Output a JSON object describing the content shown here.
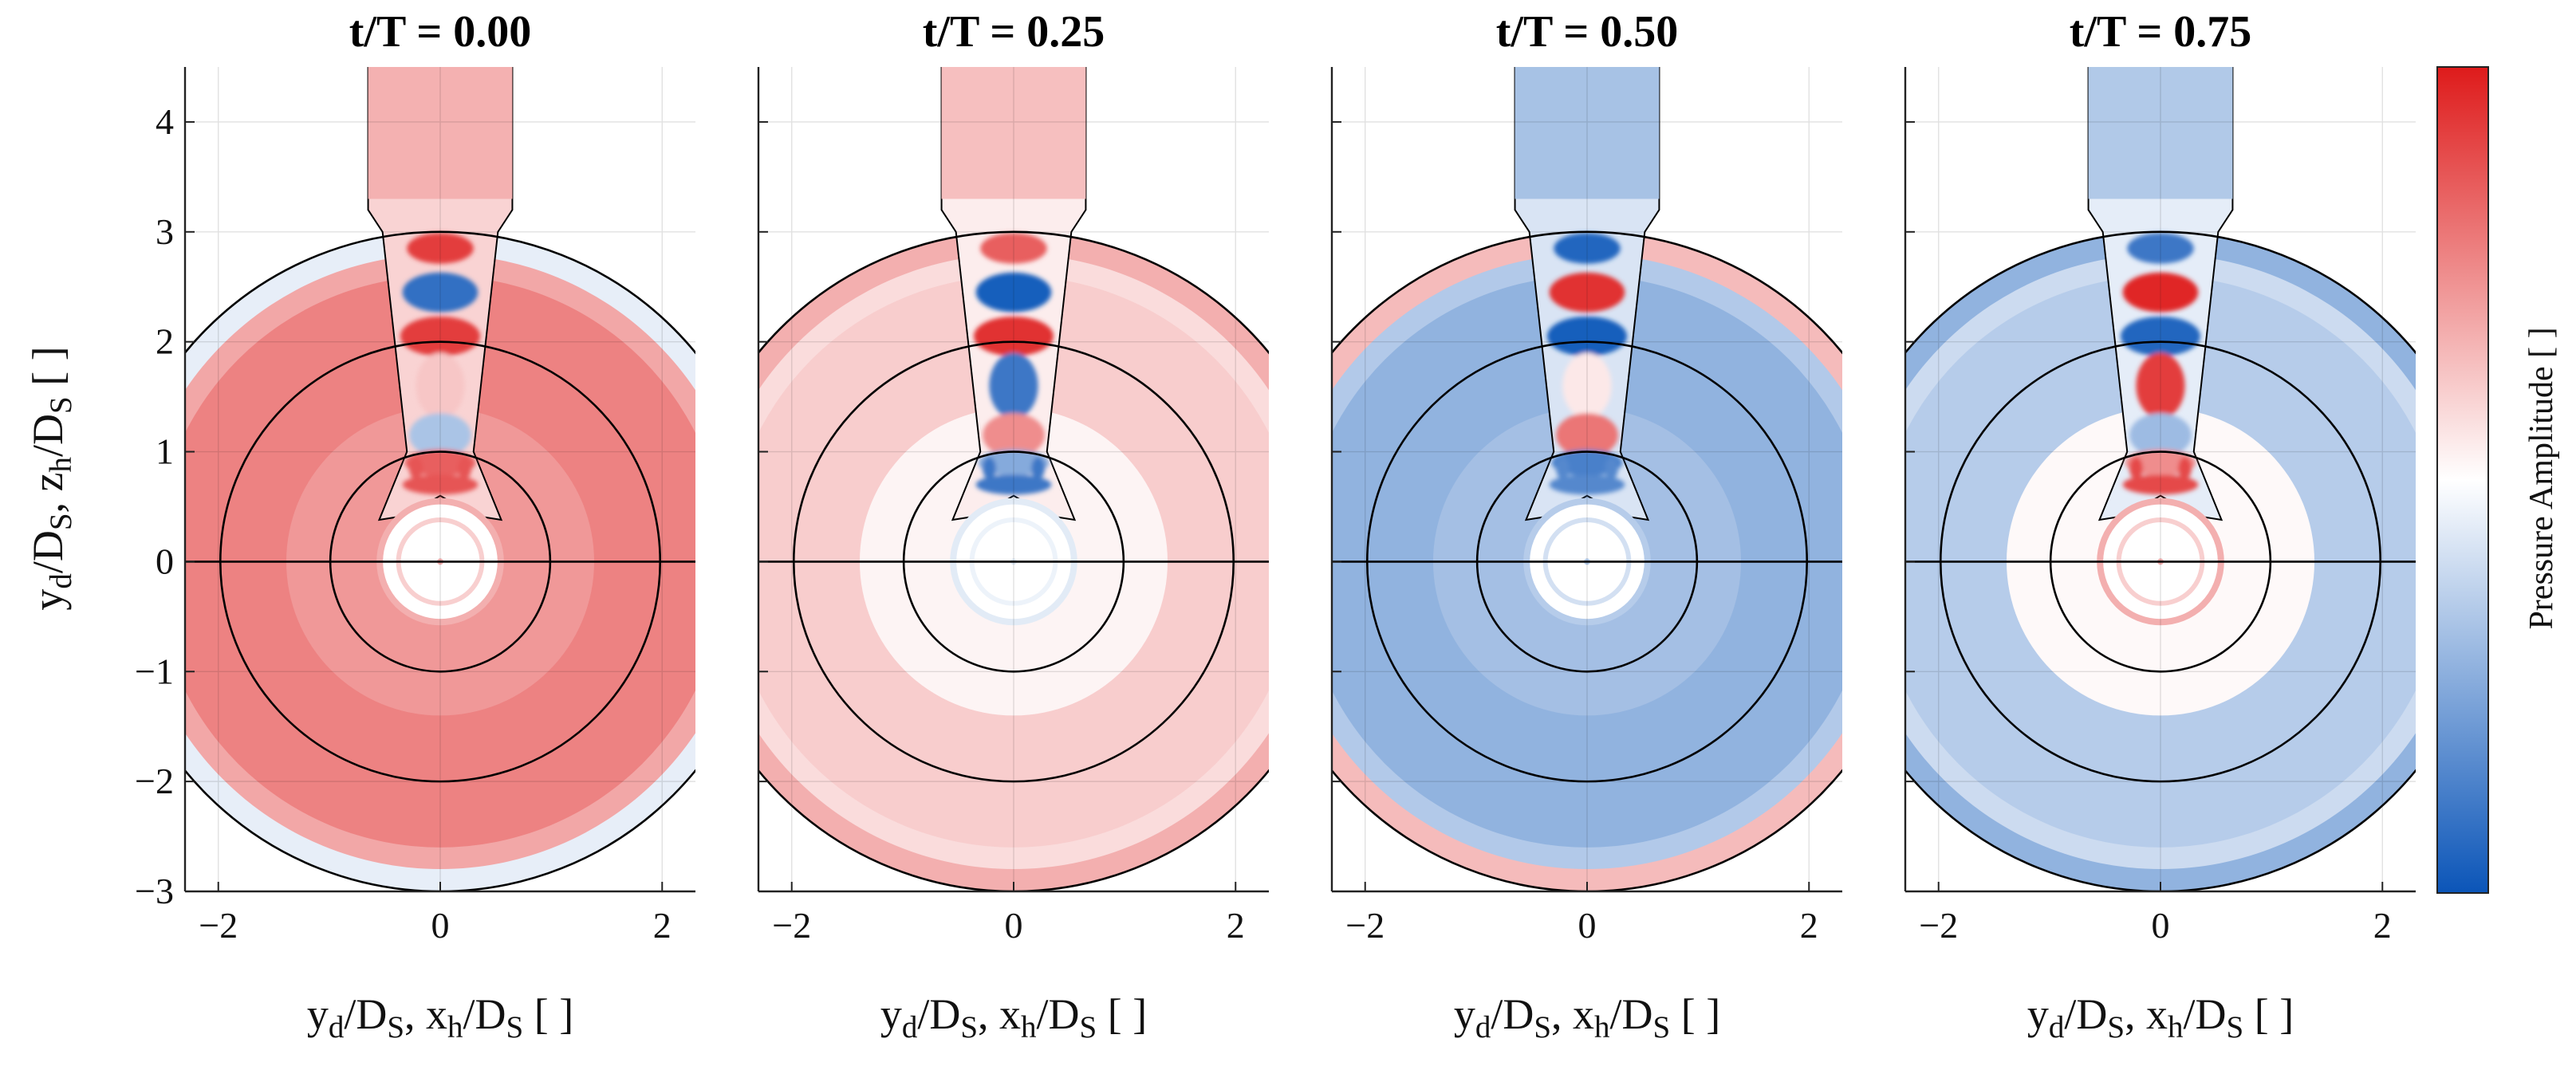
{
  "chart_data": {
    "type": "heatmap",
    "panels": [
      {
        "title": "t/T = 0.00",
        "outer_field": 0.55,
        "inner_disk_field": 0.35,
        "edge_field": -0.1,
        "vortices": [
          0.85,
          -0.85,
          0.85,
          0.25,
          -0.35,
          0.7,
          0.75
        ]
      },
      {
        "title": "t/T = 0.25",
        "outer_field": 0.22,
        "inner_disk_field": -0.12,
        "edge_field": 0.35,
        "vortices": [
          0.7,
          -0.95,
          0.9,
          -0.8,
          0.5,
          -0.5,
          -0.8
        ]
      },
      {
        "title": "t/T = 0.50",
        "outer_field": -0.45,
        "inner_disk_field": -0.3,
        "edge_field": 0.3,
        "vortices": [
          -0.9,
          0.9,
          -0.95,
          0.1,
          0.6,
          -0.75,
          -0.7
        ]
      },
      {
        "title": "t/T = 0.75",
        "outer_field": -0.3,
        "inner_disk_field": 0.35,
        "edge_field": -0.45,
        "vortices": [
          -0.8,
          0.95,
          -0.9,
          0.85,
          -0.4,
          0.5,
          0.8
        ]
      }
    ],
    "x_ticks": [
      "−2",
      "0",
      "2"
    ],
    "y_ticks": [
      "4",
      "3",
      "2",
      "1",
      "0",
      "−1",
      "−2",
      "−3"
    ],
    "xlim": [
      -2.3,
      2.3
    ],
    "ylim": [
      -3,
      4.5
    ],
    "reference_circles_radius": [
      1,
      2,
      3
    ],
    "grid": true,
    "colorbar": {
      "label": "Pressure Amplitude [ ]",
      "colormap": [
        "#0b55b8",
        "#ffffff",
        "#de1b1b"
      ]
    },
    "x_axis_label_parts": [
      {
        "text": "y",
        "sub": false
      },
      {
        "text": "d",
        "sub": true
      },
      {
        "text": "/D",
        "sub": false
      },
      {
        "text": "S",
        "sub": true
      },
      {
        "text": ", x",
        "sub": false
      },
      {
        "text": "h",
        "sub": true
      },
      {
        "text": "/D",
        "sub": false
      },
      {
        "text": "S",
        "sub": true
      },
      {
        "text": " [ ]",
        "sub": false
      }
    ],
    "y_axis_label_parts": [
      {
        "text": "y",
        "sub": false
      },
      {
        "text": "d",
        "sub": true
      },
      {
        "text": "/D",
        "sub": false
      },
      {
        "text": "S",
        "sub": true
      },
      {
        "text": ", z",
        "sub": false
      },
      {
        "text": "h",
        "sub": true
      },
      {
        "text": "/D",
        "sub": false
      },
      {
        "text": "S",
        "sub": true
      },
      {
        "text": " [ ]",
        "sub": false
      }
    ]
  }
}
